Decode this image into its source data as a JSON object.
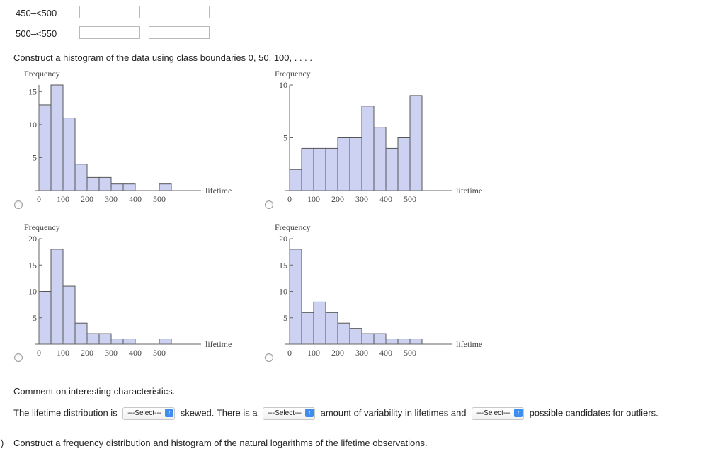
{
  "table_rows": [
    {
      "class": "450–<500",
      "freq": "",
      "rel": ""
    },
    {
      "class": "500–<550",
      "freq": "",
      "rel": ""
    }
  ],
  "prompt_histogram": "Construct a histogram of the data using class boundaries 0, 50, 100, . . . .",
  "comment_heading": "Comment on interesting characteristics.",
  "sentence": {
    "part1": "The lifetime distribution is",
    "part2": "skewed. There is a",
    "part3": "amount of variability in lifetimes and",
    "part4": "possible candidates for outliers.",
    "select_label": "---Select---"
  },
  "next_part": {
    "marker": ")",
    "text": "Construct a frequency distribution and histogram of the natural logarithms of the lifetime observations."
  },
  "chart_data": [
    {
      "type": "bar",
      "title": "",
      "ylabel": "Frequency",
      "xlabel": "lifetime",
      "bin_width": 50,
      "x_start": 0,
      "xticks": [
        0,
        100,
        200,
        300,
        400,
        500
      ],
      "yticks": [
        5,
        10,
        15
      ],
      "ylim": [
        0,
        16
      ],
      "values": [
        13,
        16,
        11,
        4,
        2,
        2,
        1,
        1,
        0,
        0,
        1
      ]
    },
    {
      "type": "bar",
      "title": "",
      "ylabel": "Frequency",
      "xlabel": "lifetime",
      "bin_width": 50,
      "x_start": 0,
      "xticks": [
        0,
        100,
        200,
        300,
        400,
        500
      ],
      "yticks": [
        5,
        10
      ],
      "ylim": [
        0,
        10
      ],
      "values": [
        2,
        4,
        4,
        4,
        5,
        5,
        8,
        6,
        4,
        5,
        9
      ]
    },
    {
      "type": "bar",
      "title": "",
      "ylabel": "Frequency",
      "xlabel": "lifetime",
      "bin_width": 50,
      "x_start": 0,
      "xticks": [
        0,
        100,
        200,
        300,
        400,
        500
      ],
      "yticks": [
        5,
        10,
        15,
        20
      ],
      "ylim": [
        0,
        20
      ],
      "values": [
        10,
        18,
        11,
        4,
        2,
        2,
        1,
        1,
        0,
        0,
        1
      ]
    },
    {
      "type": "bar",
      "title": "",
      "ylabel": "Frequency",
      "xlabel": "lifetime",
      "bin_width": 50,
      "x_start": 0,
      "xticks": [
        0,
        100,
        200,
        300,
        400,
        500
      ],
      "yticks": [
        5,
        10,
        15,
        20
      ],
      "ylim": [
        0,
        20
      ],
      "values": [
        18,
        6,
        8,
        6,
        4,
        3,
        2,
        2,
        1,
        1,
        1
      ]
    }
  ]
}
